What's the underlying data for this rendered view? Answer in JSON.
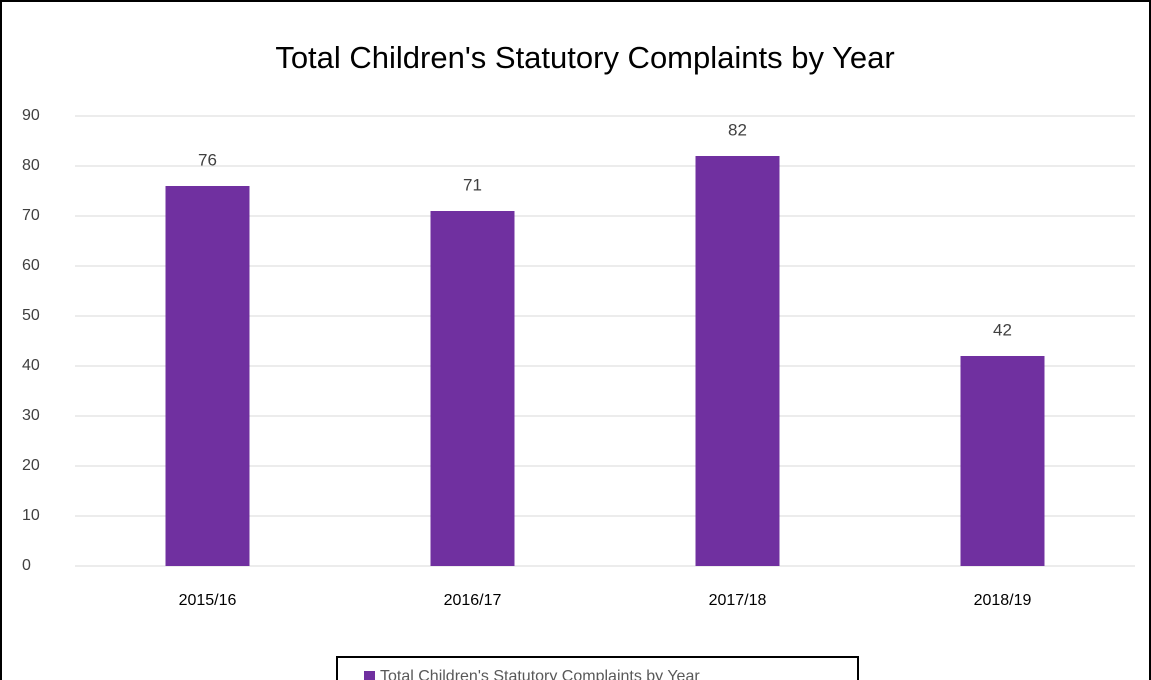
{
  "chart_data": {
    "type": "bar",
    "title": "Total Children's Statutory Complaints by Year",
    "categories": [
      "2015/16",
      "2016/17",
      "2017/18",
      "2018/19"
    ],
    "series": [
      {
        "name": "Total Children's Statutory Complaints by Year",
        "color": "#7030a0",
        "values": [
          76,
          71,
          82,
          42
        ]
      }
    ],
    "ylim": [
      0,
      90
    ],
    "yticks": [
      0,
      10,
      20,
      30,
      40,
      50,
      60,
      70,
      80,
      90
    ],
    "grid": true,
    "legend": "bottom"
  }
}
